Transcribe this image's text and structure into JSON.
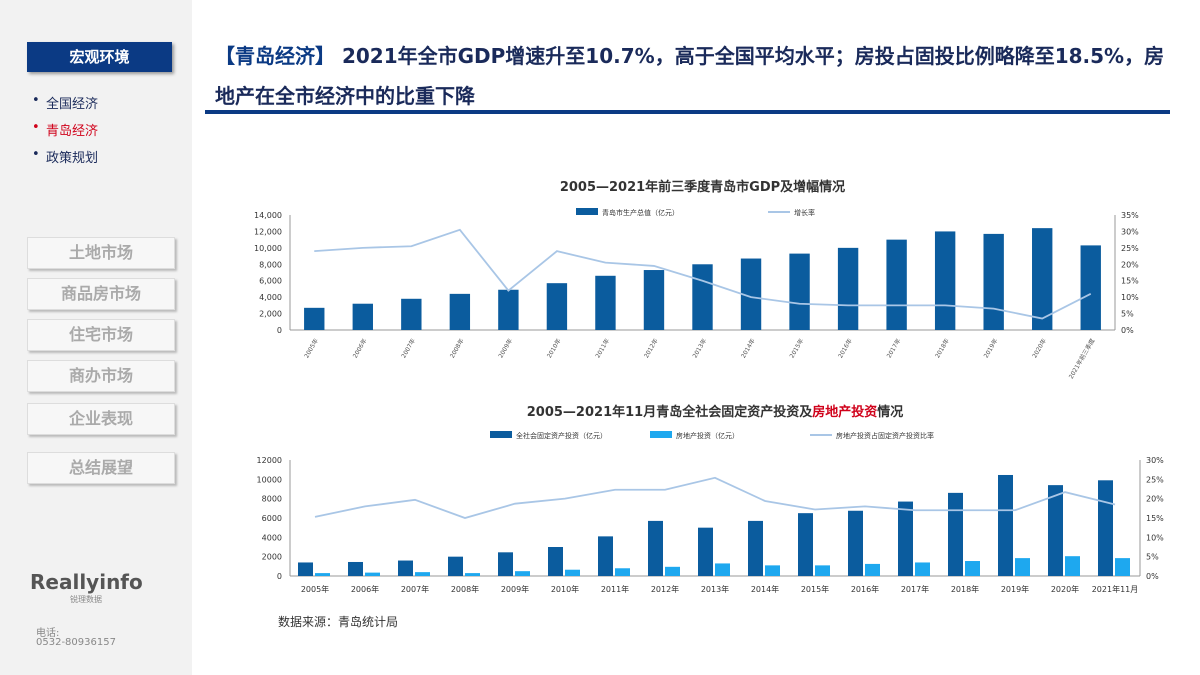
{
  "sidebar": {
    "active": "宏观环境",
    "subitems": [
      "全国经济",
      "青岛经济",
      "政策规划"
    ],
    "nav": [
      "土地市场",
      "商品房市场",
      "住宅市场",
      "商办市场",
      "企业表现",
      "总结展望"
    ],
    "logo": "Reallyinfo",
    "logo_sub": "锐理数据",
    "phone_label": "电话:",
    "phone": "0532-80936157"
  },
  "header": {
    "tag": "【青岛经济】",
    "title": "2021年全市GDP增速升至10.7%，高于全国平均水平；房投占固投比例略降至18.5%，房地产在全市经济中的比重下降"
  },
  "source": "数据来源：青岛统计局",
  "colors": {
    "dark_bar": "#0b5c9e",
    "light_bar": "#1ea8ef",
    "line": "#a9c6e6",
    "accent": "#0b3a84"
  },
  "chart_data": [
    {
      "type": "bar",
      "title": "2005—2021年前三季度青岛市GDP及增幅情况",
      "categories": [
        "2005年",
        "2006年",
        "2007年",
        "2008年",
        "2009年",
        "2010年",
        "2011年",
        "2012年",
        "2013年",
        "2014年",
        "2015年",
        "2016年",
        "2017年",
        "2018年",
        "2019年",
        "2020年",
        "2021年前三季度"
      ],
      "series": [
        {
          "name": "青岛市生产总值（亿元）",
          "type": "bar",
          "axis": "left",
          "values": [
            2700,
            3200,
            3800,
            4400,
            4900,
            5700,
            6600,
            7300,
            8000,
            8700,
            9300,
            10000,
            11000,
            12000,
            11700,
            12400,
            10300
          ]
        },
        {
          "name": "增长率",
          "type": "line",
          "axis": "right",
          "values": [
            24,
            25,
            25.5,
            30.5,
            12,
            24,
            20.5,
            19.5,
            15,
            10,
            8,
            7.5,
            7.5,
            7.5,
            6.5,
            3.5,
            11
          ]
        }
      ],
      "ylim": [
        0,
        14000
      ],
      "yticks": [
        "0",
        "2,000",
        "4,000",
        "6,000",
        "8,000",
        "10,000",
        "12,000",
        "14,000"
      ],
      "y2lim": [
        0,
        35
      ],
      "y2ticks": [
        "0%",
        "5%",
        "10%",
        "15%",
        "20%",
        "25%",
        "30%",
        "35%"
      ],
      "legend": "top"
    },
    {
      "type": "bar",
      "title": "2005—2021年11月青岛全社会固定资产投资及",
      "title_red": "房地产投资",
      "title_end": "情况",
      "categories": [
        "2005年",
        "2006年",
        "2007年",
        "2008年",
        "2009年",
        "2010年",
        "2011年",
        "2012年",
        "2013年",
        "2014年",
        "2015年",
        "2016年",
        "2017年",
        "2018年",
        "2019年",
        "2020年",
        "2021年11月"
      ],
      "series": [
        {
          "name": "全社会固定资产投资（亿元）",
          "type": "bar",
          "axis": "left",
          "values": [
            1400,
            1450,
            1600,
            2000,
            2450,
            3000,
            4100,
            5700,
            5000,
            5700,
            6500,
            6750,
            7700,
            8600,
            10450,
            9400,
            9900
          ]
        },
        {
          "name": "房地产投资（亿元）",
          "type": "bar",
          "axis": "left",
          "values": [
            300,
            350,
            400,
            300,
            500,
            650,
            800,
            950,
            1300,
            1100,
            1100,
            1250,
            1400,
            1550,
            1850,
            2050,
            1850
          ]
        },
        {
          "name": "房地产投资占固定资产投资比率",
          "type": "line",
          "axis": "right",
          "values": [
            15.3,
            18,
            19.7,
            15,
            18.7,
            20,
            22.3,
            22.3,
            25.4,
            19.4,
            17.2,
            18,
            17,
            17,
            17,
            21.7,
            18.5
          ]
        }
      ],
      "ylim": [
        0,
        12000
      ],
      "yticks": [
        "0",
        "2000",
        "4000",
        "6000",
        "8000",
        "10000",
        "12000"
      ],
      "y2lim": [
        0,
        30
      ],
      "y2ticks": [
        "0%",
        "5%",
        "10%",
        "15%",
        "20%",
        "25%",
        "30%"
      ],
      "legend": "top"
    }
  ]
}
